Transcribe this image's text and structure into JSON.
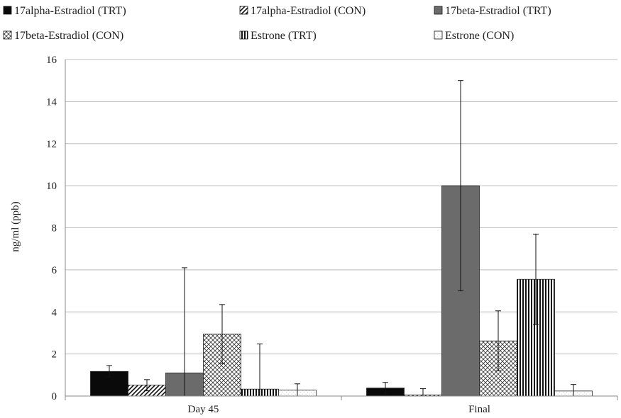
{
  "chart_data": {
    "type": "bar",
    "title": "",
    "xlabel": "",
    "ylabel": "ng/ml (ppb)",
    "ylim": [
      0,
      16
    ],
    "yticks": [
      0,
      2,
      4,
      6,
      8,
      10,
      12,
      14,
      16
    ],
    "grid": true,
    "legend_position": "top",
    "categories": [
      "Day 45",
      "Final"
    ],
    "series": [
      {
        "name": "17alpha-Estradiol (TRT)",
        "pattern": "solid-black",
        "values": [
          1.17,
          0.38
        ],
        "error_low": [
          0.9,
          0.1
        ],
        "error_high": [
          1.45,
          0.65
        ]
      },
      {
        "name": "17alpha-Estradiol (CON)",
        "pattern": "diagonal-lines",
        "values": [
          0.52,
          0.05
        ],
        "error_low": [
          0.25,
          0.0
        ],
        "error_high": [
          0.78,
          0.35
        ]
      },
      {
        "name": "17beta-Estradiol (TRT)",
        "pattern": "solid-gray",
        "values": [
          1.1,
          10.0
        ],
        "error_low": [
          0.0,
          5.0
        ],
        "error_high": [
          6.1,
          15.0
        ]
      },
      {
        "name": "17beta-Estradiol (CON)",
        "pattern": "crosshatch",
        "values": [
          2.95,
          2.62
        ],
        "error_low": [
          1.55,
          1.2
        ],
        "error_high": [
          4.35,
          4.05
        ]
      },
      {
        "name": "Estrone (TRT)",
        "pattern": "vertical-lines",
        "values": [
          0.33,
          5.55
        ],
        "error_low": [
          0.0,
          3.4
        ],
        "error_high": [
          2.48,
          7.7
        ]
      },
      {
        "name": "Estrone (CON)",
        "pattern": "dotted-white",
        "values": [
          0.28,
          0.24
        ],
        "error_low": [
          0.0,
          0.0
        ],
        "error_high": [
          0.58,
          0.55
        ]
      }
    ]
  },
  "colors": {
    "grid": "#bdbdbd",
    "axis": "#888888",
    "bar_stroke": "#222222",
    "solid_gray": "#6b6b6b"
  }
}
